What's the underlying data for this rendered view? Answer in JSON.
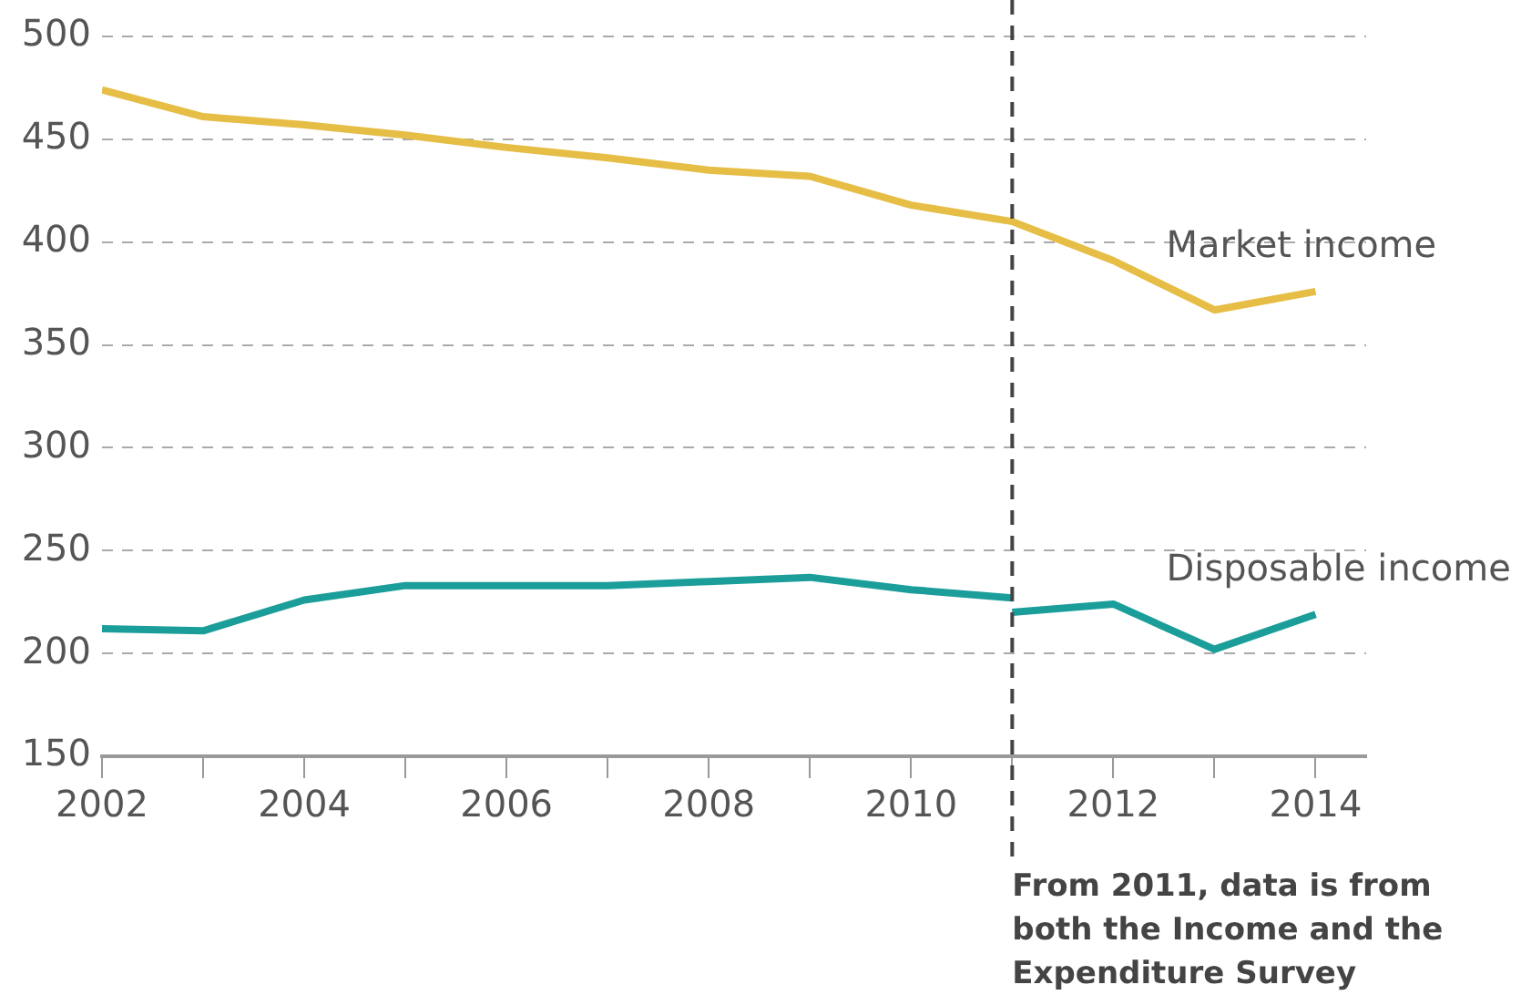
{
  "chart_data": {
    "type": "line",
    "x": [
      2002,
      2003,
      2004,
      2005,
      2006,
      2007,
      2008,
      2009,
      2010,
      2011,
      2012,
      2013,
      2014
    ],
    "series": [
      {
        "name": "Market income",
        "color": "#e6bd45",
        "values": [
          474,
          461,
          457,
          452,
          446,
          441,
          435,
          432,
          418,
          410,
          391,
          367,
          376
        ]
      },
      {
        "color": "#1b9e9a",
        "x": [
          2002,
          2003,
          2004,
          2005,
          2006,
          2007,
          2008,
          2009,
          2010,
          2011
        ],
        "values": [
          212,
          211,
          226,
          233,
          233,
          233,
          235,
          237,
          231,
          227
        ]
      },
      {
        "name": "Disposable income",
        "color": "#1b9e9a",
        "x": [
          2011,
          2012,
          2013,
          2014
        ],
        "values": [
          220,
          224,
          202,
          219
        ]
      }
    ],
    "xlim": [
      2002,
      2014.5
    ],
    "xticks": [
      2002,
      {
        "value": 2003,
        "label": null
      },
      2004,
      {
        "value": 2005,
        "label": null
      },
      2006,
      {
        "value": 2007,
        "label": null
      },
      2008,
      {
        "value": 2009,
        "label": null
      },
      2010,
      {
        "value": 2011,
        "label": null
      },
      2012,
      {
        "value": 2013,
        "label": null
      },
      2014
    ],
    "ylim": [
      150,
      500
    ],
    "yticks": [
      150,
      200,
      250,
      300,
      350,
      400,
      450,
      500
    ],
    "grid": "y",
    "legend": false,
    "marker": "none",
    "line_style": "solid",
    "ref_lines": [
      {
        "axis": "x",
        "value": 2011,
        "label": "From 2011, data is from both the Income and the Expenditure Survey",
        "color": "#444444",
        "line_style": "dashed"
      }
    ]
  }
}
